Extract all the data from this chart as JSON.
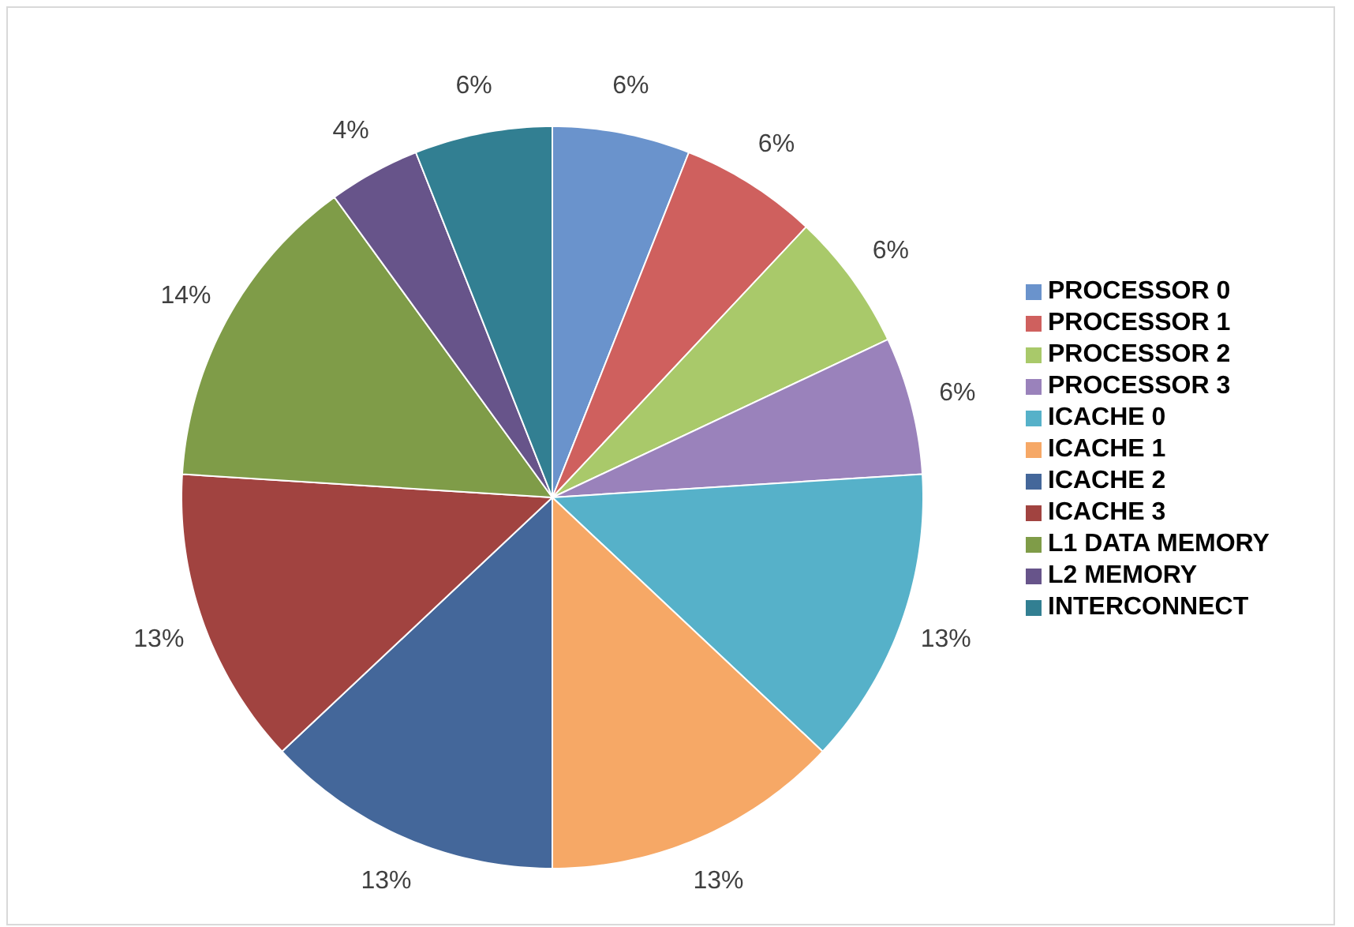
{
  "chart_data": {
    "type": "pie",
    "categories": [
      "PROCESSOR 0",
      "PROCESSOR 1",
      "PROCESSOR 2",
      "PROCESSOR 3",
      "ICACHE 0",
      "ICACHE 1",
      "ICACHE 2",
      "ICACHE 3",
      "L1 DATA MEMORY",
      "L2 MEMORY",
      "INTERCONNECT"
    ],
    "values": [
      6,
      6,
      6,
      6,
      13,
      13,
      13,
      13,
      14,
      4,
      6
    ],
    "value_labels": [
      "6%",
      "6%",
      "6%",
      "6%",
      "13%",
      "13%",
      "13%",
      "13%",
      "14%",
      "4%",
      "6%"
    ],
    "colors": [
      "#6a93cc",
      "#cf605e",
      "#a9c96a",
      "#9a82bb",
      "#56b1c9",
      "#f6a866",
      "#44679a",
      "#a14340",
      "#7f9c48",
      "#67548a",
      "#327f92"
    ],
    "legend": "right"
  }
}
